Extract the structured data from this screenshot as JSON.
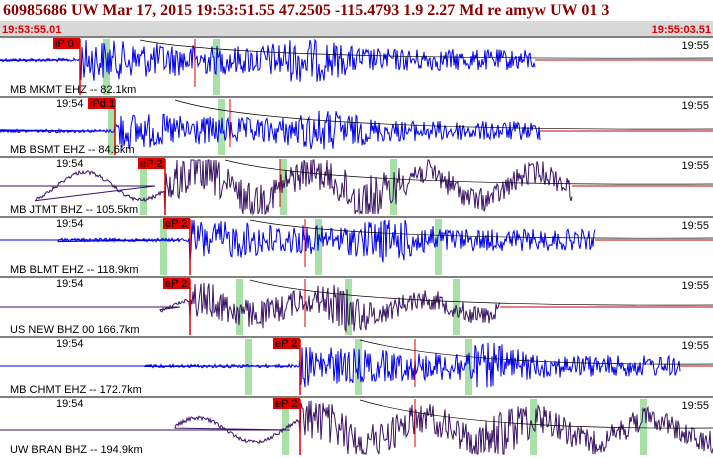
{
  "header": {
    "title": "60985686 UW Mar 17, 2015 19:53:51.55    47.2505 -115.4793  1.9 2.27 Md re amyw UW 01   3",
    "start_time": "19:53:55.01",
    "end_time": "19:55:03.51"
  },
  "traces": [
    {
      "label": "MB MKMT EHZ -- 82.1km",
      "pick": "iP 0",
      "time_right": "19:55",
      "color": "#0000ee"
    },
    {
      "label": "MB BSMT EHZ -- 84.6km",
      "pick": "iPd 1",
      "time_left": "19:54",
      "time_right": "19:55",
      "color": "#0000ee"
    },
    {
      "label": "MB JTMT BHZ -- 105.5km",
      "pick": "eP 2",
      "time_left": "19:54",
      "time_right": "19:55",
      "color": "#3a1466"
    },
    {
      "label": "MB BLMT EHZ -- 118.9km",
      "pick": "eP 2",
      "time_left": "19:54",
      "time_right": "19:55",
      "color": "#0000ee"
    },
    {
      "label": "US NEW BHZ 00 166.7km",
      "pick": "eP 2",
      "time_left": "19:54",
      "time_right": "19:55",
      "color": "#3a1466"
    },
    {
      "label": "MB CHMT EHZ -- 172.7km",
      "pick": "eP 2",
      "time_left": "19:54",
      "time_right": "19:55",
      "color": "#0000ee"
    },
    {
      "label": "UW BRAN BHZ -- 194.9km",
      "pick": "eP 2",
      "time_left": "19:54",
      "time_right": "19:55",
      "color": "#3a1466"
    }
  ]
}
